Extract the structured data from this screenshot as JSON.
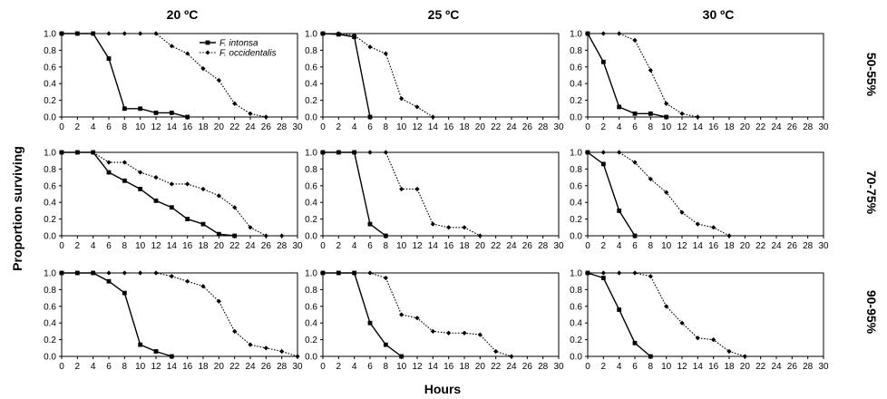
{
  "figure": {
    "xlabel": "Hours",
    "ylabel": "Proportion surviving",
    "columns": [
      "20 ºC",
      "25 ºC",
      "30 ºC"
    ],
    "rows": [
      "50-55%",
      "70-75%",
      "90-95%"
    ],
    "legend": [
      "F. intonsa",
      "F. occidentalis"
    ]
  },
  "chart_data": [
    {
      "type": "line",
      "column": "20 ºC",
      "row": "50-55%",
      "xlim": [
        0,
        30
      ],
      "ylim": [
        0,
        1
      ],
      "grid": false,
      "legend_position": "top-center",
      "series": [
        {
          "name": "F. intonsa",
          "x": [
            0,
            2,
            4,
            6,
            8,
            10,
            12,
            14,
            16
          ],
          "values": [
            1.0,
            1.0,
            1.0,
            0.7,
            0.1,
            0.1,
            0.05,
            0.05,
            0.0
          ]
        },
        {
          "name": "F. occidentalis",
          "x": [
            0,
            2,
            4,
            6,
            8,
            10,
            12,
            14,
            16,
            18,
            20,
            22,
            24,
            26
          ],
          "values": [
            1.0,
            1.0,
            1.0,
            1.0,
            1.0,
            1.0,
            1.0,
            0.85,
            0.76,
            0.58,
            0.44,
            0.16,
            0.04,
            0.0
          ]
        }
      ]
    },
    {
      "type": "line",
      "column": "25 ºC",
      "row": "50-55%",
      "xlim": [
        0,
        30
      ],
      "ylim": [
        0,
        1
      ],
      "grid": false,
      "series": [
        {
          "name": "F. intonsa",
          "x": [
            0,
            2,
            4,
            6
          ],
          "values": [
            1.0,
            0.99,
            0.96,
            0.0
          ]
        },
        {
          "name": "F. occidentalis",
          "x": [
            0,
            2,
            4,
            6,
            8,
            10,
            12,
            14
          ],
          "values": [
            1.0,
            1.0,
            0.98,
            0.84,
            0.76,
            0.22,
            0.12,
            0.0
          ]
        }
      ]
    },
    {
      "type": "line",
      "column": "30 ºC",
      "row": "50-55%",
      "xlim": [
        0,
        30
      ],
      "ylim": [
        0,
        1
      ],
      "grid": false,
      "series": [
        {
          "name": "F. intonsa",
          "x": [
            0,
            2,
            4,
            6,
            8,
            10
          ],
          "values": [
            1.0,
            0.66,
            0.12,
            0.04,
            0.04,
            0.0
          ]
        },
        {
          "name": "F. occidentalis",
          "x": [
            0,
            2,
            4,
            6,
            8,
            10,
            12,
            14
          ],
          "values": [
            1.0,
            1.0,
            1.0,
            0.92,
            0.56,
            0.16,
            0.04,
            0.0
          ]
        }
      ]
    },
    {
      "type": "line",
      "column": "20 ºC",
      "row": "70-75%",
      "xlim": [
        0,
        30
      ],
      "ylim": [
        0,
        1
      ],
      "grid": false,
      "series": [
        {
          "name": "F. intonsa",
          "x": [
            0,
            2,
            4,
            6,
            8,
            10,
            12,
            14,
            16,
            18,
            20,
            22
          ],
          "values": [
            1.0,
            1.0,
            1.0,
            0.76,
            0.66,
            0.56,
            0.42,
            0.34,
            0.2,
            0.14,
            0.02,
            0.0
          ]
        },
        {
          "name": "F. occidentalis",
          "x": [
            0,
            2,
            4,
            6,
            8,
            10,
            12,
            14,
            16,
            18,
            20,
            22,
            24,
            26,
            28
          ],
          "values": [
            1.0,
            1.0,
            1.0,
            0.88,
            0.88,
            0.76,
            0.7,
            0.62,
            0.62,
            0.56,
            0.48,
            0.34,
            0.1,
            0.0,
            0.0
          ]
        }
      ]
    },
    {
      "type": "line",
      "column": "25 ºC",
      "row": "70-75%",
      "xlim": [
        0,
        30
      ],
      "ylim": [
        0,
        1
      ],
      "grid": false,
      "series": [
        {
          "name": "F. intonsa",
          "x": [
            0,
            2,
            4,
            6,
            8
          ],
          "values": [
            1.0,
            1.0,
            1.0,
            0.14,
            0.0
          ]
        },
        {
          "name": "F. occidentalis",
          "x": [
            0,
            2,
            4,
            6,
            8,
            10,
            12,
            14,
            16,
            18,
            20
          ],
          "values": [
            1.0,
            1.0,
            1.0,
            1.0,
            1.0,
            0.56,
            0.56,
            0.14,
            0.1,
            0.1,
            0.0
          ]
        }
      ]
    },
    {
      "type": "line",
      "column": "30 ºC",
      "row": "70-75%",
      "xlim": [
        0,
        30
      ],
      "ylim": [
        0,
        1
      ],
      "grid": false,
      "series": [
        {
          "name": "F. intonsa",
          "x": [
            0,
            2,
            4,
            6
          ],
          "values": [
            1.0,
            0.86,
            0.3,
            0.0
          ]
        },
        {
          "name": "F. occidentalis",
          "x": [
            0,
            2,
            4,
            6,
            8,
            10,
            12,
            14,
            16,
            18
          ],
          "values": [
            1.0,
            1.0,
            1.0,
            0.88,
            0.68,
            0.52,
            0.28,
            0.14,
            0.1,
            0.0
          ]
        }
      ]
    },
    {
      "type": "line",
      "column": "20 ºC",
      "row": "90-95%",
      "xlim": [
        0,
        30
      ],
      "ylim": [
        0,
        1
      ],
      "grid": false,
      "series": [
        {
          "name": "F. intonsa",
          "x": [
            0,
            2,
            4,
            6,
            8,
            10,
            12,
            14
          ],
          "values": [
            1.0,
            1.0,
            1.0,
            0.9,
            0.76,
            0.14,
            0.06,
            0.0
          ]
        },
        {
          "name": "F. occidentalis",
          "x": [
            0,
            2,
            4,
            6,
            8,
            10,
            12,
            14,
            16,
            18,
            20,
            22,
            24,
            26,
            28,
            30
          ],
          "values": [
            1.0,
            1.0,
            1.0,
            1.0,
            1.0,
            1.0,
            1.0,
            0.96,
            0.9,
            0.84,
            0.66,
            0.3,
            0.14,
            0.1,
            0.06,
            0.0
          ]
        }
      ]
    },
    {
      "type": "line",
      "column": "25 ºC",
      "row": "90-95%",
      "xlim": [
        0,
        30
      ],
      "ylim": [
        0,
        1
      ],
      "grid": false,
      "series": [
        {
          "name": "F. intonsa",
          "x": [
            0,
            2,
            4,
            6,
            8,
            10
          ],
          "values": [
            1.0,
            1.0,
            1.0,
            0.4,
            0.14,
            0.0
          ]
        },
        {
          "name": "F. occidentalis",
          "x": [
            0,
            2,
            4,
            6,
            8,
            10,
            12,
            14,
            16,
            18,
            20,
            22,
            24
          ],
          "values": [
            1.0,
            1.0,
            1.0,
            1.0,
            0.94,
            0.5,
            0.46,
            0.3,
            0.28,
            0.28,
            0.26,
            0.06,
            0.0
          ]
        }
      ]
    },
    {
      "type": "line",
      "column": "30 ºC",
      "row": "90-95%",
      "xlim": [
        0,
        30
      ],
      "ylim": [
        0,
        1
      ],
      "grid": false,
      "series": [
        {
          "name": "F. intonsa",
          "x": [
            0,
            2,
            4,
            6,
            8
          ],
          "values": [
            1.0,
            0.94,
            0.56,
            0.16,
            0.0
          ]
        },
        {
          "name": "F. occidentalis",
          "x": [
            0,
            2,
            4,
            6,
            8,
            10,
            12,
            14,
            16,
            18,
            20
          ],
          "values": [
            1.0,
            1.0,
            1.0,
            1.0,
            0.96,
            0.6,
            0.4,
            0.22,
            0.2,
            0.06,
            0.0
          ]
        }
      ]
    }
  ]
}
